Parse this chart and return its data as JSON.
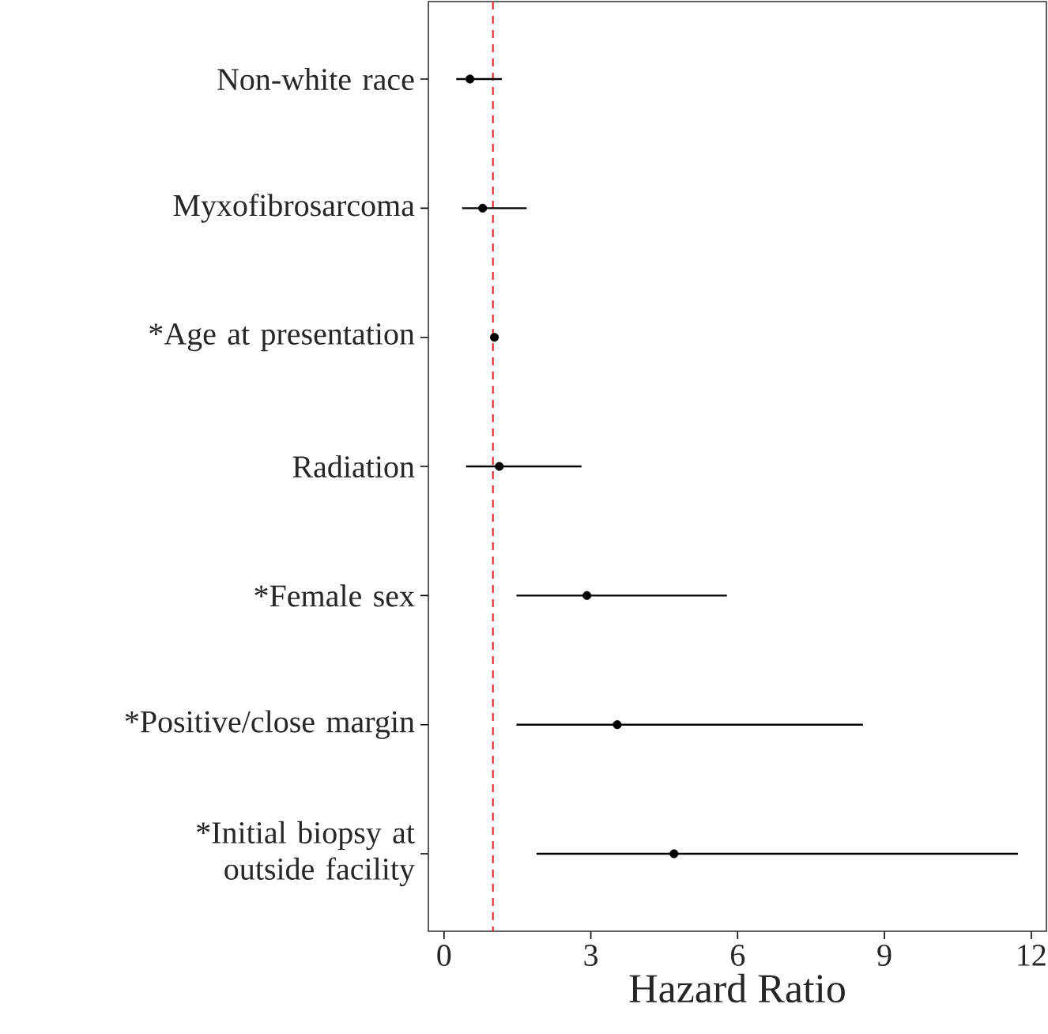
{
  "chart_data": {
    "type": "scatter",
    "orientation": "horizontal",
    "xlabel": "Hazard Ratio",
    "categories": [
      "Non-white race",
      "Myxofibrosarcoma",
      "*Age at presentation",
      "Radiation",
      "*Female sex",
      "*Positive/close margin",
      "*Initial biopsy at outside facility"
    ],
    "values": [
      0.53,
      0.79,
      1.03,
      1.13,
      2.92,
      3.54,
      4.7
    ],
    "errors": [
      [
        0.25,
        1.18
      ],
      [
        0.37,
        1.69
      ],
      null,
      [
        0.45,
        2.81
      ],
      [
        1.48,
        5.78
      ],
      [
        1.48,
        8.56
      ],
      [
        1.89,
        11.73
      ]
    ],
    "color": "#000000",
    "marker": "circle",
    "xlim": [
      -0.32,
      12.31
    ],
    "xticks": [
      0,
      3,
      6,
      9,
      12
    ],
    "ref_lines": [
      {
        "axis": "x",
        "value": 1,
        "color": "#e0202a",
        "line_style": "dashed"
      }
    ],
    "grid": false
  }
}
